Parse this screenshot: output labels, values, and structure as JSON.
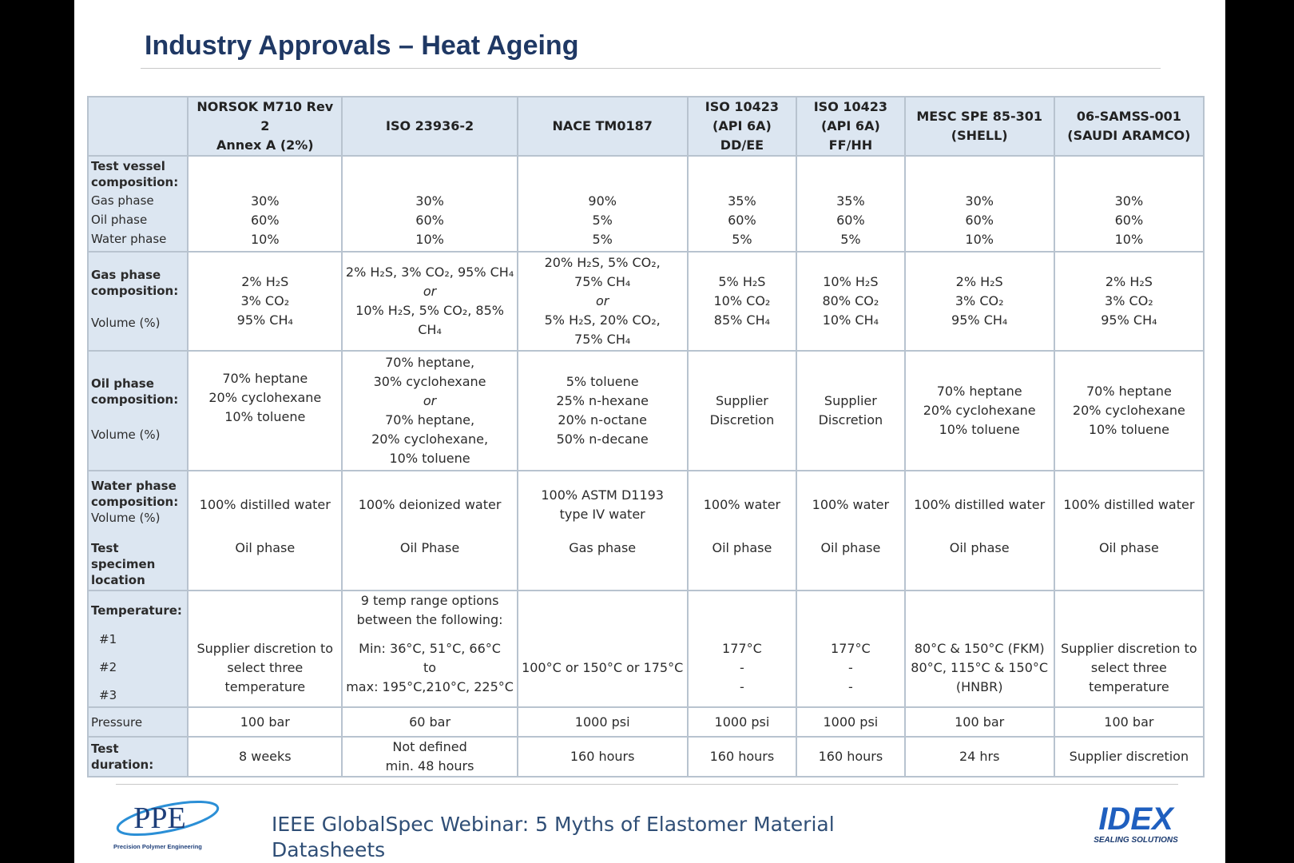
{
  "title": "Industry Approvals – Heat Ageing",
  "columns": [
    [
      "NORSOK M710 Rev 2",
      "Annex A (2%)"
    ],
    [
      "ISO 23936-2"
    ],
    [
      "NACE TM0187"
    ],
    [
      "ISO 10423",
      "(API 6A) DD/EE"
    ],
    [
      "ISO 10423",
      "(API 6A) FF/HH"
    ],
    [
      "MESC SPE 85-301",
      "(SHELL)"
    ],
    [
      "06-SAMSS-001",
      "(SAUDI ARAMCO)"
    ]
  ],
  "row_headers": {
    "vessel": {
      "title": "Test vessel composition:",
      "gas": "Gas phase",
      "oil": "Oil phase",
      "water": "Water phase"
    },
    "gas_comp": {
      "title": "Gas phase composition:",
      "sub": "Volume (%)"
    },
    "oil_comp": {
      "title": "Oil phase composition:",
      "sub": "Volume (%)"
    },
    "water_comp": {
      "title": "Water phase composition:",
      "sub": "Volume (%)"
    },
    "location": {
      "title": "Test specimen location"
    },
    "temperature": {
      "title": "Temperature:",
      "t1": "#1",
      "t2": "#2",
      "t3": "#3"
    },
    "pressure": {
      "title": "Pressure"
    },
    "duration": {
      "title": "Test duration:"
    }
  },
  "vessel": [
    [
      "30%",
      "60%",
      "10%"
    ],
    [
      "30%",
      "60%",
      "10%"
    ],
    [
      "90%",
      "5%",
      "5%"
    ],
    [
      "35%",
      "60%",
      "5%"
    ],
    [
      "35%",
      "60%",
      "5%"
    ],
    [
      "30%",
      "60%",
      "10%"
    ],
    [
      "30%",
      "60%",
      "10%"
    ]
  ],
  "gas_comp": {
    "c0": [
      "2% H₂S",
      "3% CO₂",
      "95% CH₄"
    ],
    "c1": {
      "a": "2% H₂S, 3% CO₂, 95% CH₄",
      "or": "or",
      "b": "10% H₂S, 5% CO₂, 85% CH₄"
    },
    "c2": {
      "a1": "20% H₂S, 5% CO₂,",
      "a2": "75% CH₄",
      "or": "or",
      "b1": "5% H₂S, 20% CO₂,",
      "b2": "75% CH₄"
    },
    "c3": [
      "5% H₂S",
      "10% CO₂",
      "85% CH₄"
    ],
    "c4": [
      "10% H₂S",
      "80% CO₂",
      "10% CH₄"
    ],
    "c5": [
      "2% H₂S",
      "3% CO₂",
      "95% CH₄"
    ],
    "c6": [
      "2% H₂S",
      "3% CO₂",
      "95% CH₄"
    ]
  },
  "oil_comp": {
    "c0": [
      "70% heptane",
      "20% cyclohexane",
      "10% toluene"
    ],
    "c1": {
      "a1": "70% heptane,",
      "a2": "30% cyclohexane",
      "or": "or",
      "b1": "70% heptane,",
      "b2": "20% cyclohexane,",
      "b3": "10% toluene"
    },
    "c2": [
      "5% toluene",
      "25% n-hexane",
      "20% n-octane",
      "50% n-decane"
    ],
    "c3": [
      "Supplier",
      "Discretion"
    ],
    "c4": [
      "Supplier",
      "Discretion"
    ],
    "c5": [
      "70% heptane",
      "20% cyclohexane",
      "10% toluene"
    ],
    "c6": [
      "70% heptane",
      "20% cyclohexane",
      "10% toluene"
    ]
  },
  "water_comp": [
    [
      "100% distilled water"
    ],
    [
      "100% deionized water"
    ],
    [
      "100% ASTM D1193",
      "type IV water"
    ],
    [
      "100% water"
    ],
    [
      "100% water"
    ],
    [
      "100% distilled water"
    ],
    [
      "100% distilled water"
    ]
  ],
  "location": [
    "Oil phase",
    "Oil Phase",
    "Gas phase",
    "Oil phase",
    "Oil phase",
    "Oil phase",
    "Oil phase"
  ],
  "temperature": {
    "c0": [
      "Supplier discretion to",
      "select three",
      "temperature"
    ],
    "c1": {
      "h1": "9 temp range options",
      "h2": "between the following:",
      "min": "Min: 36°C, 51°C, 66°C",
      "to": "to",
      "max": "max: 195°C,210°C, 225°C"
    },
    "c2": [
      "100°C or 150°C or 175°C"
    ],
    "c3": [
      "177°C",
      "-",
      "-"
    ],
    "c4": [
      "177°C",
      "-",
      "-"
    ],
    "c5": [
      "80°C & 150°C (FKM)",
      "80°C, 115°C & 150°C",
      "(HNBR)"
    ],
    "c6": [
      "Supplier discretion to",
      "select three",
      "temperature"
    ]
  },
  "pressure": [
    "100 bar",
    "60 bar",
    "1000 psi",
    "1000 psi",
    "1000 psi",
    "100 bar",
    "100 bar"
  ],
  "duration": {
    "c0": "8 weeks",
    "c1": [
      "Not defined",
      "min. 48 hours"
    ],
    "c2": "160 hours",
    "c3": "160 hours",
    "c4": "160 hours",
    "c5": "24 hrs",
    "c6": "Supplier discretion"
  },
  "footer": {
    "text_line1": "IEEE GlobalSpec Webinar: 5 Myths of Elastomer Material",
    "text_line2": "Datasheets",
    "ppe_logo_text": "PPE",
    "ppe_logo_sub": "Precision Polymer Engineering",
    "idex_logo_text": "IDEX",
    "idex_logo_sub": "SEALING SOLUTIONS"
  },
  "colors": {
    "title": "#1f3864",
    "header_fill": "#dce6f1",
    "grid": "#b8c3cf",
    "idex_blue": "#1f5fbf",
    "ppe_blue": "#1e5aa8"
  }
}
